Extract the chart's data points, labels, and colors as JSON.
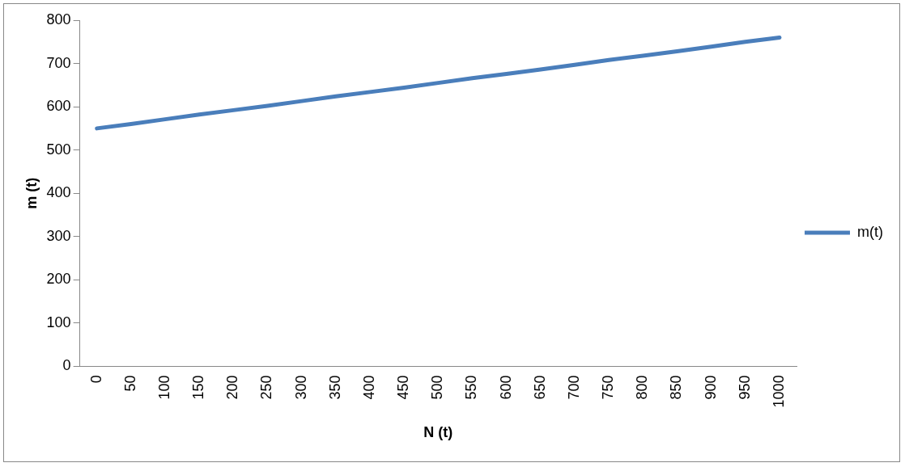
{
  "chart_data": {
    "type": "line",
    "xlabel": "N (t)",
    "ylabel": "m (t)",
    "categories": [
      "0",
      "50",
      "100",
      "150",
      "200",
      "250",
      "300",
      "350",
      "400",
      "450",
      "500",
      "550",
      "600",
      "650",
      "700",
      "750",
      "800",
      "850",
      "900",
      "950",
      "1000"
    ],
    "series": [
      {
        "name": "m(t)",
        "color": "#4a7ebb",
        "values": [
          550,
          560,
          571,
          582,
          592,
          602,
          613,
          624,
          634,
          644,
          655,
          666,
          676,
          686,
          697,
          708,
          718,
          728,
          739,
          750,
          760
        ]
      }
    ],
    "ylim": [
      0,
      800
    ],
    "yticks": [
      0,
      100,
      200,
      300,
      400,
      500,
      600,
      700,
      800
    ],
    "grid": false,
    "legend": "right",
    "marker": "none",
    "line_style": "solid"
  }
}
